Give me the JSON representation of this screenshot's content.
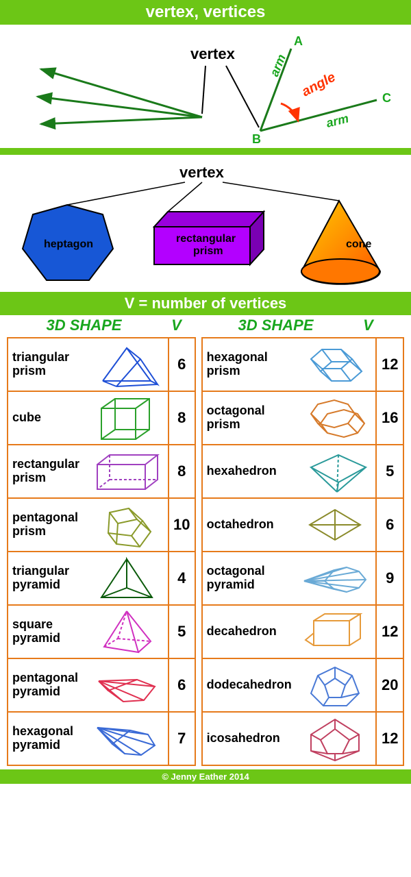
{
  "title": "vertex, vertices",
  "panel1": {
    "vertex_label": "vertex",
    "A": "A",
    "B": "B",
    "C": "C",
    "arm": "arm",
    "angle": "angle",
    "arrow_color": "#1a7a1a",
    "angle_color": "#ff3300",
    "label_color": "#19a61e"
  },
  "panel2": {
    "vertex_label": "vertex",
    "heptagon": {
      "label": "heptagon",
      "fill": "#1757d6",
      "stroke": "#000"
    },
    "prism": {
      "label": "rectangular\nprism",
      "front": "#b300ff",
      "top": "#9900dd",
      "side": "#7a00b3"
    },
    "cone": {
      "label": "cone",
      "c1": "#ff5500",
      "c2": "#ffcc00"
    }
  },
  "subheader": "V = number of vertices",
  "col_shape": "3D SHAPE",
  "col_v": "V",
  "table_border": "#e67a1a",
  "header_color": "#19a61e",
  "shapes_left": [
    {
      "name": "triangular prism",
      "v": 6,
      "color": "#1e4fd6"
    },
    {
      "name": "cube",
      "v": 8,
      "color": "#2aa02a"
    },
    {
      "name": "rectangular prism",
      "v": 8,
      "color": "#a040c0"
    },
    {
      "name": "pentagonal prism",
      "v": 10,
      "color": "#8a9a2a"
    },
    {
      "name": "triangular pyramid",
      "v": 4,
      "color": "#0a5a0a"
    },
    {
      "name": "square pyramid",
      "v": 5,
      "color": "#d030c0"
    },
    {
      "name": "pentagonal pyramid",
      "v": 6,
      "color": "#e03050"
    },
    {
      "name": "hexagonal pyramid",
      "v": 7,
      "color": "#3a6ad6"
    }
  ],
  "shapes_right": [
    {
      "name": "hexagonal prism",
      "v": 12,
      "color": "#4a9ad6"
    },
    {
      "name": "octagonal prism",
      "v": 16,
      "color": "#d67a2a"
    },
    {
      "name": "hexahedron",
      "v": 5,
      "color": "#2a9a9a"
    },
    {
      "name": "octahedron",
      "v": 6,
      "color": "#8a8a2a"
    },
    {
      "name": "octagonal pyramid",
      "v": 9,
      "color": "#6aaad6"
    },
    {
      "name": "decahedron",
      "v": 12,
      "color": "#e69a3a"
    },
    {
      "name": "dodecahedron",
      "v": 20,
      "color": "#4a7ad6"
    },
    {
      "name": "icosahedron",
      "v": 12,
      "color": "#c04060"
    }
  ],
  "footer": "© Jenny Eather 2014"
}
